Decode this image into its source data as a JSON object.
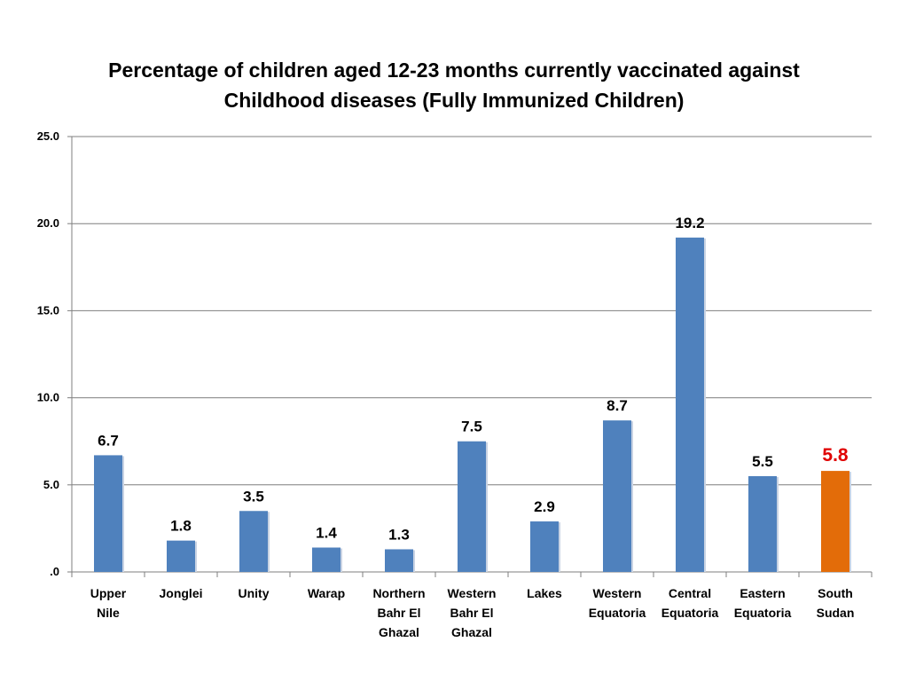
{
  "chart_data": {
    "type": "bar",
    "title_lines": [
      "Percentage of children aged 12-23 months currently vaccinated against",
      "Childhood diseases (Fully Immunized Children)"
    ],
    "categories": [
      [
        "Upper",
        "Nile"
      ],
      [
        "Jonglei"
      ],
      [
        "Unity"
      ],
      [
        "Warap"
      ],
      [
        "Northern",
        "Bahr El",
        "Ghazal"
      ],
      [
        "Western",
        "Bahr El",
        "Ghazal"
      ],
      [
        "Lakes"
      ],
      [
        "Western",
        "Equatoria"
      ],
      [
        "Central",
        "Equatoria"
      ],
      [
        "Eastern",
        "Equatoria"
      ],
      [
        "South",
        "Sudan"
      ]
    ],
    "values": [
      6.7,
      1.8,
      3.5,
      1.4,
      1.3,
      7.5,
      2.9,
      8.7,
      19.2,
      5.5,
      5.8
    ],
    "value_labels": [
      "6.7",
      "1.8",
      "3.5",
      "1.4",
      "1.3",
      "7.5",
      "2.9",
      "8.7",
      "19.2",
      "5.5",
      "5.8"
    ],
    "ylim": [
      0,
      25
    ],
    "yticks": [
      0,
      5,
      10,
      15,
      20,
      25
    ],
    "ytick_labels": [
      ".0",
      "5.0",
      "10.0",
      "15.0",
      "20.0",
      "25.0"
    ],
    "grid": true,
    "legend": "none",
    "colors": {
      "bar": "#4f81bd",
      "highlight_bar": "#e36c09",
      "highlight_label": "#e00000",
      "gridline": "#7f7f7f"
    },
    "highlight_index": 10
  }
}
